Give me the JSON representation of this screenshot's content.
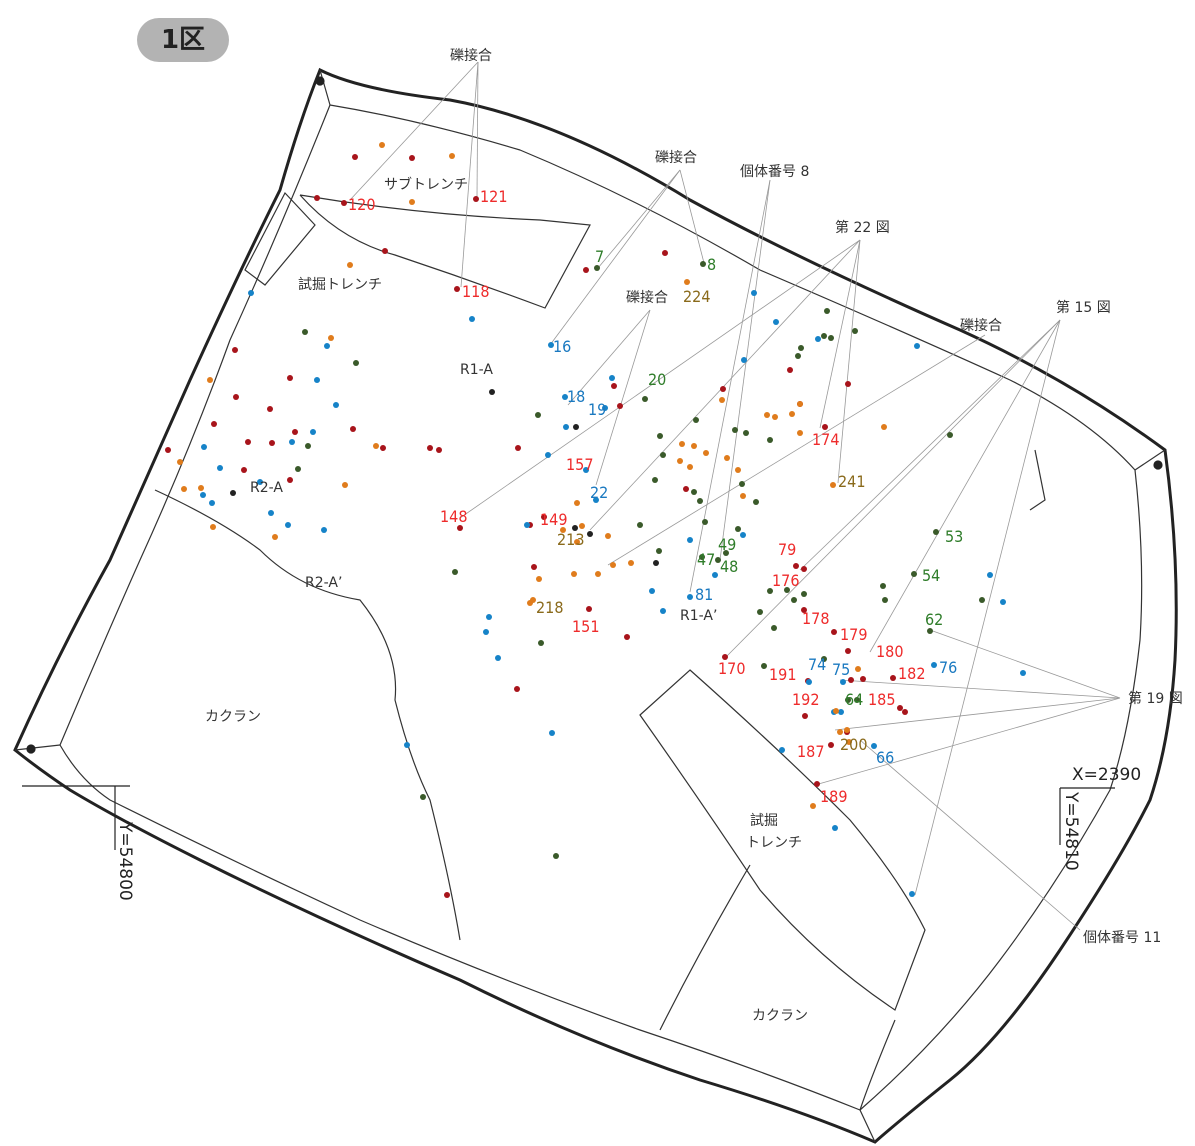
{
  "badge": "1区",
  "colors": {
    "red": "#ee2b2b",
    "green": "#2f7d2a",
    "blue": "#1a79c0",
    "olive": "#8a6a1b",
    "dot_red": "#a8141b",
    "dot_green": "#3a5a2a",
    "dot_blue": "#1683c8",
    "dot_orange": "#e07c1c",
    "dot_black": "#222222"
  },
  "labels": {
    "joint1": "礫接合",
    "joint2": "礫接合",
    "joint3": "礫接合",
    "joint4": "礫接合",
    "indiv8": "個体番号 8",
    "fig22": "第 22 図",
    "fig15": "第 15 図",
    "fig19": "第 19 図",
    "indiv11": "個体番号 11",
    "sub_trench": "サブトレンチ",
    "trial_trench_a": "試掘トレンチ",
    "trial_trench_b1": "試掘",
    "trial_trench_b2": "トレンチ",
    "kakuran1": "カクラン",
    "kakuran2": "カクラン",
    "r1a": "R1-A",
    "r1a2": "R1-A’",
    "r2a": "R2-A",
    "r2a2": "R2-A’",
    "x2390": "X=2390",
    "y54800": "Y=54800",
    "y54810": "Y=54810"
  },
  "numbers": [
    {
      "t": "120",
      "c": "red"
    },
    {
      "t": "121",
      "c": "red"
    },
    {
      "t": "118",
      "c": "red"
    },
    {
      "t": "7",
      "c": "green"
    },
    {
      "t": "8",
      "c": "green"
    },
    {
      "t": "224",
      "c": "olive"
    },
    {
      "t": "16",
      "c": "blue"
    },
    {
      "t": "18",
      "c": "blue"
    },
    {
      "t": "19",
      "c": "blue"
    },
    {
      "t": "20",
      "c": "green"
    },
    {
      "t": "157",
      "c": "red"
    },
    {
      "t": "22",
      "c": "blue"
    },
    {
      "t": "174",
      "c": "red"
    },
    {
      "t": "241",
      "c": "olive"
    },
    {
      "t": "148",
      "c": "red"
    },
    {
      "t": "149",
      "c": "red"
    },
    {
      "t": "213",
      "c": "olive"
    },
    {
      "t": "49",
      "c": "green"
    },
    {
      "t": "47",
      "c": "green"
    },
    {
      "t": "48",
      "c": "green"
    },
    {
      "t": "81",
      "c": "blue"
    },
    {
      "t": "218",
      "c": "olive"
    },
    {
      "t": "151",
      "c": "red"
    },
    {
      "t": "79",
      "c": "red"
    },
    {
      "t": "176",
      "c": "red"
    },
    {
      "t": "53",
      "c": "green"
    },
    {
      "t": "54",
      "c": "green"
    },
    {
      "t": "178",
      "c": "red"
    },
    {
      "t": "179",
      "c": "red"
    },
    {
      "t": "62",
      "c": "green"
    },
    {
      "t": "180",
      "c": "red"
    },
    {
      "t": "170",
      "c": "red"
    },
    {
      "t": "191",
      "c": "red"
    },
    {
      "t": "74",
      "c": "blue"
    },
    {
      "t": "75",
      "c": "blue"
    },
    {
      "t": "182",
      "c": "red"
    },
    {
      "t": "76",
      "c": "blue"
    },
    {
      "t": "192",
      "c": "red"
    },
    {
      "t": "64",
      "c": "green"
    },
    {
      "t": "185",
      "c": "red"
    },
    {
      "t": "200",
      "c": "olive"
    },
    {
      "t": "187",
      "c": "red"
    },
    {
      "t": "66",
      "c": "blue"
    },
    {
      "t": "189",
      "c": "red"
    }
  ]
}
